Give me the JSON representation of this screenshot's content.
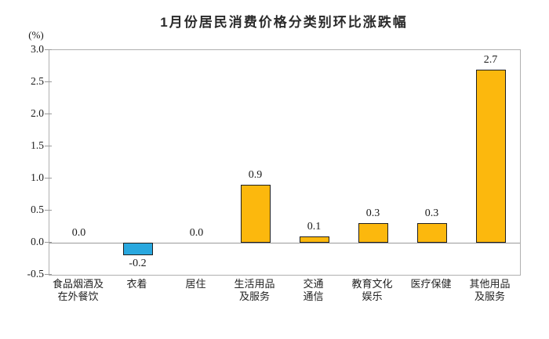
{
  "title": "1月份居民消费价格分类别环比涨跌幅",
  "axis_unit_label": "(%)",
  "colors": {
    "positive_bar": "#FCB80D",
    "negative_bar": "#29A8DF",
    "bar_border": "#1f1f1f",
    "frame": "#b0b0b0",
    "zero_line": "#9a9a9a",
    "tick": "#999999",
    "text": "#1a1a1a"
  },
  "chart_data": {
    "type": "bar",
    "title": "1月份居民消费价格分类别环比涨跌幅",
    "categories": [
      "食品烟酒及\n在外餐饮",
      "衣着",
      "居住",
      "生活用品\n及服务",
      "交通\n通信",
      "教育文化\n娱乐",
      "医疗保健",
      "其他用品\n及服务"
    ],
    "values": [
      0.0,
      -0.2,
      0.0,
      0.9,
      0.1,
      0.3,
      0.3,
      2.7
    ],
    "value_labels": [
      "0.0",
      "-0.2",
      "0.0",
      "0.9",
      "0.1",
      "0.3",
      "0.3",
      "2.7"
    ],
    "xlabel": "",
    "ylabel": "(%)",
    "ylim": [
      -0.5,
      3.0
    ],
    "ytick_step": 0.5,
    "ytick_labels": [
      "3.0",
      "2.5",
      "2.0",
      "1.5",
      "1.0",
      "0.5",
      "0.0",
      "-0.5"
    ],
    "grid": false,
    "legend": false,
    "zero_line": true
  }
}
